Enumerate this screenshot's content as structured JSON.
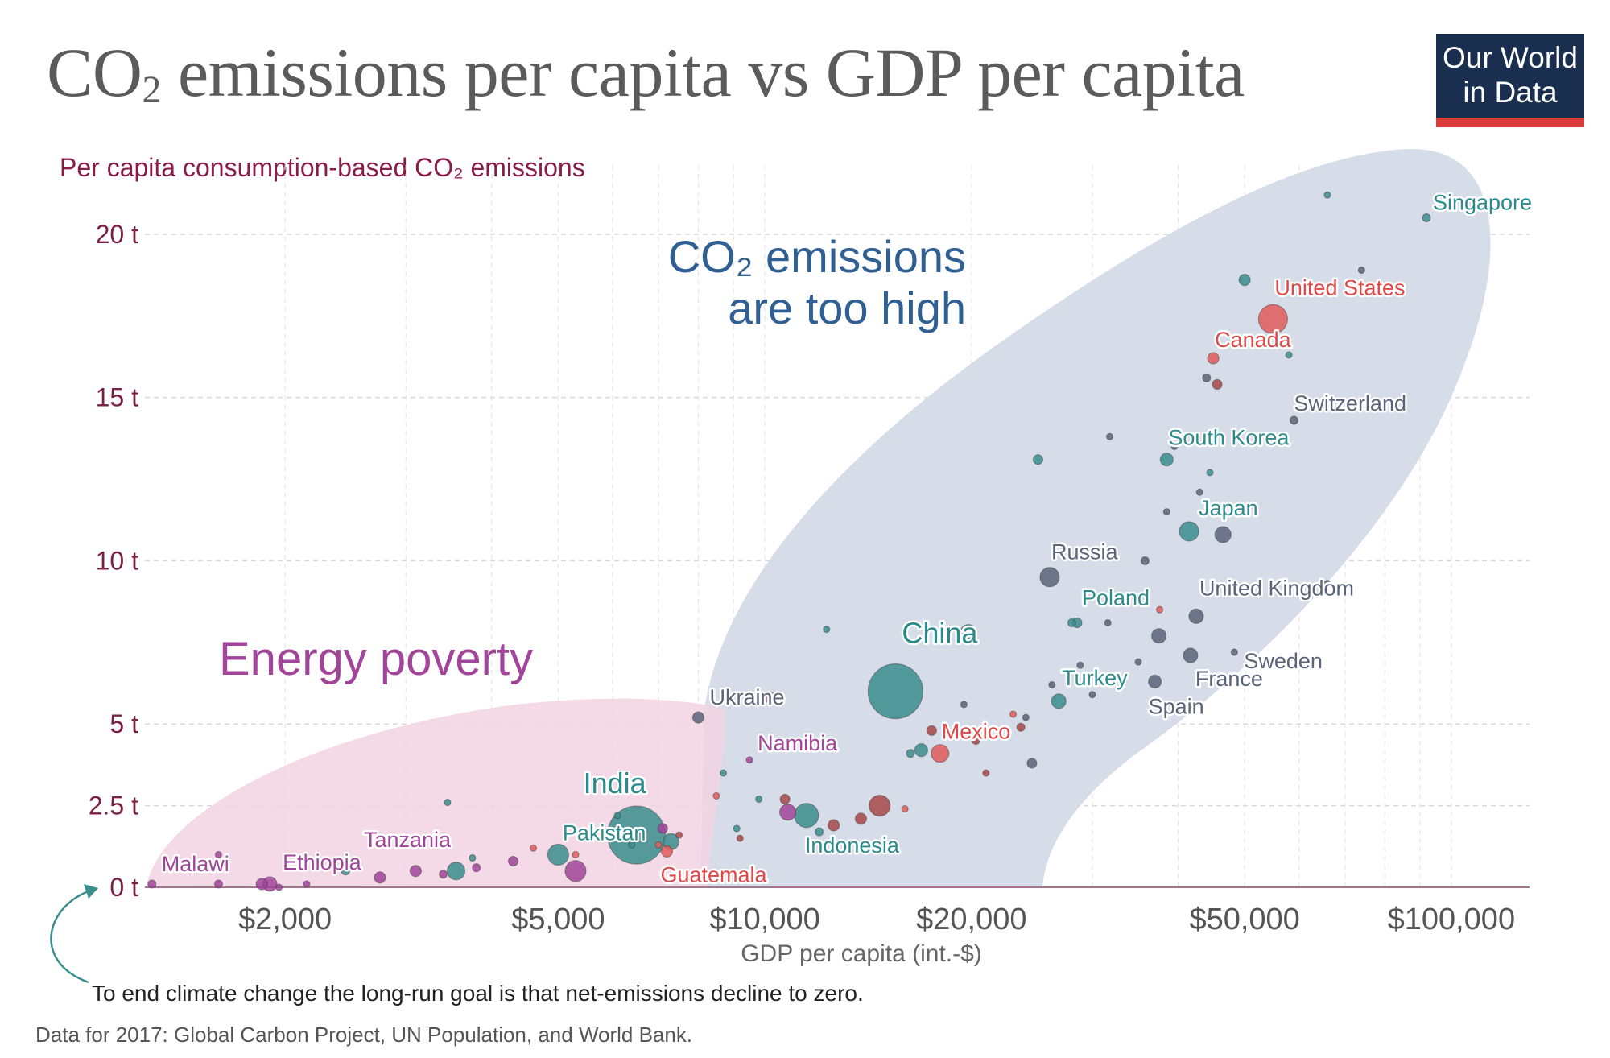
{
  "header": {
    "title_main": "CO",
    "title_sub": "2",
    "title_rest": " emissions per capita vs GDP per capita",
    "logo_line1": "Our World",
    "logo_line2": "in Data"
  },
  "colors": {
    "teal": "#3a8d8d",
    "red": "#e05a5a",
    "purple": "#a1449a",
    "slate": "#5a6378",
    "brown": "#a84848",
    "blob_blue": "#d4dbe8",
    "blob_pink": "#f2d3e3",
    "axis_red": "#8a1d48"
  },
  "chart_data": {
    "type": "scatter",
    "title": "CO₂ emissions per capita vs GDP per capita",
    "ylabel": "Per capita consumption-based CO₂ emissions",
    "xlabel": "GDP per capita (int.-$)",
    "x_scale": "log",
    "xlim": [
      1250,
      130000
    ],
    "ylim": [
      0,
      21.5
    ],
    "x_ticks": [
      2000,
      5000,
      10000,
      20000,
      50000,
      100000
    ],
    "x_tick_labels": [
      "$2,000",
      "$5,000",
      "$10,000",
      "$20,000",
      "$50,000",
      "$100,000"
    ],
    "y_ticks": [
      0,
      2.5,
      5,
      10,
      15,
      20
    ],
    "y_tick_labels": [
      "0 t",
      "2.5 t",
      "5 t",
      "10 t",
      "15 t",
      "20 t"
    ],
    "grid": true,
    "regions": [
      {
        "label_line1": "CO₂ emissions",
        "label_line2": "are too high"
      },
      {
        "label_line1": "Energy poverty"
      }
    ],
    "points": [
      {
        "x": 1280,
        "y": 0.1,
        "s": 5,
        "c": "purple",
        "label": "Malawi"
      },
      {
        "x": 1600,
        "y": 0.1,
        "s": 5,
        "c": "purple"
      },
      {
        "x": 1600,
        "y": 1.0,
        "s": 4,
        "c": "purple"
      },
      {
        "x": 1850,
        "y": 0.1,
        "s": 7,
        "c": "purple"
      },
      {
        "x": 1900,
        "y": 0.1,
        "s": 9,
        "c": "purple",
        "label": "Ethiopia"
      },
      {
        "x": 1960,
        "y": 0.0,
        "s": 4,
        "c": "purple"
      },
      {
        "x": 2150,
        "y": 0.1,
        "s": 4,
        "c": "purple"
      },
      {
        "x": 2450,
        "y": 0.5,
        "s": 5,
        "c": "teal"
      },
      {
        "x": 2480,
        "y": 0.7,
        "s": 4,
        "c": "purple"
      },
      {
        "x": 2750,
        "y": 0.3,
        "s": 7,
        "c": "purple",
        "label": "Tanzania"
      },
      {
        "x": 3100,
        "y": 0.5,
        "s": 7,
        "c": "purple"
      },
      {
        "x": 3450,
        "y": 2.6,
        "s": 4,
        "c": "teal"
      },
      {
        "x": 3400,
        "y": 0.4,
        "s": 5,
        "c": "purple"
      },
      {
        "x": 3550,
        "y": 0.5,
        "s": 11,
        "c": "teal"
      },
      {
        "x": 3750,
        "y": 0.9,
        "s": 4,
        "c": "teal"
      },
      {
        "x": 3800,
        "y": 0.6,
        "s": 5,
        "c": "purple"
      },
      {
        "x": 4300,
        "y": 0.8,
        "s": 6,
        "c": "purple"
      },
      {
        "x": 4600,
        "y": 1.2,
        "s": 4,
        "c": "red"
      },
      {
        "x": 5000,
        "y": 1.0,
        "s": 13,
        "c": "teal"
      },
      {
        "x": 5300,
        "y": 1.0,
        "s": 4,
        "c": "red"
      },
      {
        "x": 5300,
        "y": 0.5,
        "s": 13,
        "c": "purple"
      },
      {
        "x": 6100,
        "y": 2.2,
        "s": 4,
        "c": "teal"
      },
      {
        "x": 6500,
        "y": 1.6,
        "s": 36,
        "c": "teal",
        "label": "India"
      },
      {
        "x": 6400,
        "y": 1.3,
        "s": 4,
        "c": "teal",
        "label": "Pakistan"
      },
      {
        "x": 7000,
        "y": 1.3,
        "s": 4,
        "c": "red"
      },
      {
        "x": 7100,
        "y": 1.8,
        "s": 6,
        "c": "purple"
      },
      {
        "x": 7300,
        "y": 1.4,
        "s": 10,
        "c": "teal"
      },
      {
        "x": 7200,
        "y": 1.1,
        "s": 7,
        "c": "red",
        "label": "Guatemala"
      },
      {
        "x": 7500,
        "y": 1.6,
        "s": 4,
        "c": "brown"
      },
      {
        "x": 8000,
        "y": 5.2,
        "s": 7,
        "c": "slate",
        "label": "Ukraine"
      },
      {
        "x": 8500,
        "y": 2.8,
        "s": 4,
        "c": "red"
      },
      {
        "x": 8700,
        "y": 3.5,
        "s": 4,
        "c": "teal"
      },
      {
        "x": 9100,
        "y": 1.8,
        "s": 4,
        "c": "teal"
      },
      {
        "x": 9200,
        "y": 1.5,
        "s": 4,
        "c": "brown"
      },
      {
        "x": 9500,
        "y": 3.9,
        "s": 4,
        "c": "purple",
        "label": "Namibia"
      },
      {
        "x": 9800,
        "y": 2.7,
        "s": 4,
        "c": "teal"
      },
      {
        "x": 10200,
        "y": 5.8,
        "s": 7,
        "c": "purple"
      },
      {
        "x": 10700,
        "y": 2.7,
        "s": 6,
        "c": "brown"
      },
      {
        "x": 10800,
        "y": 2.3,
        "s": 10,
        "c": "purple"
      },
      {
        "x": 11500,
        "y": 2.2,
        "s": 15,
        "c": "teal",
        "label": "Indonesia"
      },
      {
        "x": 12000,
        "y": 1.7,
        "s": 5,
        "c": "teal"
      },
      {
        "x": 12300,
        "y": 7.9,
        "s": 4,
        "c": "teal"
      },
      {
        "x": 12600,
        "y": 1.9,
        "s": 7,
        "c": "brown"
      },
      {
        "x": 13800,
        "y": 2.1,
        "s": 7,
        "c": "brown"
      },
      {
        "x": 14700,
        "y": 2.5,
        "s": 13,
        "c": "brown"
      },
      {
        "x": 15500,
        "y": 6.0,
        "s": 34,
        "c": "teal",
        "label": "China"
      },
      {
        "x": 16000,
        "y": 2.4,
        "s": 4,
        "c": "red"
      },
      {
        "x": 16300,
        "y": 4.1,
        "s": 5,
        "c": "teal"
      },
      {
        "x": 16900,
        "y": 4.2,
        "s": 8,
        "c": "teal"
      },
      {
        "x": 17500,
        "y": 4.8,
        "s": 6,
        "c": "brown"
      },
      {
        "x": 18000,
        "y": 4.1,
        "s": 11,
        "c": "red",
        "label": "Mexico"
      },
      {
        "x": 19500,
        "y": 5.6,
        "s": 4,
        "c": "slate"
      },
      {
        "x": 19800,
        "y": 7.8,
        "s": 10,
        "c": "teal"
      },
      {
        "x": 20300,
        "y": 4.5,
        "s": 5,
        "c": "brown"
      },
      {
        "x": 21000,
        "y": 3.5,
        "s": 4,
        "c": "brown"
      },
      {
        "x": 23000,
        "y": 5.3,
        "s": 4,
        "c": "red"
      },
      {
        "x": 23600,
        "y": 4.9,
        "s": 5,
        "c": "brown"
      },
      {
        "x": 24000,
        "y": 5.2,
        "s": 4,
        "c": "slate"
      },
      {
        "x": 24500,
        "y": 3.8,
        "s": 6,
        "c": "slate"
      },
      {
        "x": 25000,
        "y": 13.1,
        "s": 6,
        "c": "teal"
      },
      {
        "x": 26000,
        "y": 9.5,
        "s": 12,
        "c": "slate",
        "label": "Russia"
      },
      {
        "x": 26200,
        "y": 6.2,
        "s": 4,
        "c": "slate"
      },
      {
        "x": 26800,
        "y": 5.7,
        "s": 9,
        "c": "teal",
        "label": "Turkey"
      },
      {
        "x": 28000,
        "y": 8.1,
        "s": 5,
        "c": "teal"
      },
      {
        "x": 28500,
        "y": 8.1,
        "s": 6,
        "c": "teal",
        "label": "Poland"
      },
      {
        "x": 28800,
        "y": 6.8,
        "s": 4,
        "c": "slate"
      },
      {
        "x": 30000,
        "y": 5.9,
        "s": 4,
        "c": "slate"
      },
      {
        "x": 31600,
        "y": 8.1,
        "s": 4,
        "c": "slate"
      },
      {
        "x": 31800,
        "y": 13.8,
        "s": 4,
        "c": "slate"
      },
      {
        "x": 32500,
        "y": 8.8,
        "s": 4,
        "c": "slate"
      },
      {
        "x": 33600,
        "y": 8.8,
        "s": 4,
        "c": "slate"
      },
      {
        "x": 35000,
        "y": 6.9,
        "s": 4,
        "c": "slate"
      },
      {
        "x": 35800,
        "y": 10.0,
        "s": 5,
        "c": "slate"
      },
      {
        "x": 37000,
        "y": 6.3,
        "s": 8,
        "c": "slate",
        "label": "Spain"
      },
      {
        "x": 37500,
        "y": 7.7,
        "s": 9,
        "c": "slate"
      },
      {
        "x": 37600,
        "y": 8.5,
        "s": 4,
        "c": "red"
      },
      {
        "x": 38500,
        "y": 13.1,
        "s": 8,
        "c": "teal",
        "label": "South Korea"
      },
      {
        "x": 38500,
        "y": 11.5,
        "s": 4,
        "c": "slate"
      },
      {
        "x": 39500,
        "y": 13.5,
        "s": 4,
        "c": "slate"
      },
      {
        "x": 41500,
        "y": 10.9,
        "s": 12,
        "c": "teal",
        "label": "Japan"
      },
      {
        "x": 41700,
        "y": 7.1,
        "s": 9,
        "c": "slate",
        "label": "France"
      },
      {
        "x": 42500,
        "y": 8.3,
        "s": 9,
        "c": "slate",
        "label": "United Kingdom"
      },
      {
        "x": 43000,
        "y": 12.1,
        "s": 4,
        "c": "slate"
      },
      {
        "x": 44500,
        "y": 12.7,
        "s": 4,
        "c": "teal"
      },
      {
        "x": 44000,
        "y": 15.6,
        "s": 5,
        "c": "slate"
      },
      {
        "x": 45000,
        "y": 16.2,
        "s": 7,
        "c": "red",
        "label": "Canada"
      },
      {
        "x": 45600,
        "y": 15.4,
        "s": 6,
        "c": "brown"
      },
      {
        "x": 46500,
        "y": 10.8,
        "s": 10,
        "c": "slate"
      },
      {
        "x": 48000,
        "y": 9.3,
        "s": 4,
        "c": "slate"
      },
      {
        "x": 48300,
        "y": 7.2,
        "s": 4,
        "c": "slate",
        "label": "Sweden"
      },
      {
        "x": 49500,
        "y": 9.2,
        "s": 5,
        "c": "slate"
      },
      {
        "x": 50000,
        "y": 18.6,
        "s": 7,
        "c": "teal"
      },
      {
        "x": 55000,
        "y": 17.4,
        "s": 18,
        "c": "red",
        "label": "United States"
      },
      {
        "x": 58000,
        "y": 16.3,
        "s": 4,
        "c": "teal"
      },
      {
        "x": 59000,
        "y": 14.3,
        "s": 5,
        "c": "slate",
        "label": "Switzerland"
      },
      {
        "x": 66000,
        "y": 21.2,
        "s": 4,
        "c": "teal"
      },
      {
        "x": 66000,
        "y": 9.3,
        "s": 4,
        "c": "slate"
      },
      {
        "x": 74000,
        "y": 18.9,
        "s": 4,
        "c": "slate"
      },
      {
        "x": 92000,
        "y": 20.5,
        "s": 5,
        "c": "teal",
        "label": "Singapore"
      }
    ]
  },
  "axis": {
    "xlabel": "GDP per capita (int.-$)",
    "ylabel_prefix": "Per capita consumption-based CO",
    "ylabel_sub": "₂",
    "ylabel_suffix": " emissions"
  },
  "footer": {
    "note": "To end climate change the long-run goal is that net-emissions decline to zero.",
    "source": "Data for 2017: Global Carbon Project, UN Population, and World Bank."
  }
}
